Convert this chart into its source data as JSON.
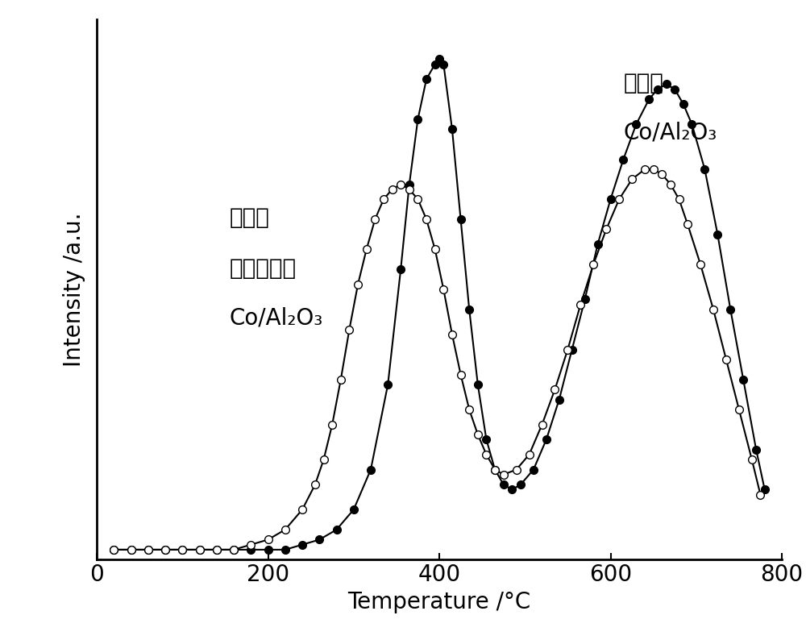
{
  "xlabel": "Temperature /°C",
  "ylabel": "Intensity /a.u.",
  "xlim": [
    0,
    800
  ],
  "ylim": [
    0,
    1.08
  ],
  "xticks": [
    0,
    200,
    400,
    600,
    800
  ],
  "filled_x": [
    20,
    40,
    60,
    80,
    100,
    120,
    140,
    160,
    180,
    200,
    220,
    240,
    260,
    280,
    300,
    320,
    340,
    355,
    365,
    375,
    385,
    395,
    400,
    405,
    415,
    425,
    435,
    445,
    455,
    465,
    475,
    485,
    495,
    510,
    525,
    540,
    555,
    570,
    585,
    600,
    615,
    630,
    645,
    655,
    665,
    675,
    685,
    695,
    710,
    725,
    740,
    755,
    770,
    780
  ],
  "filled_y": [
    0.02,
    0.02,
    0.02,
    0.02,
    0.02,
    0.02,
    0.02,
    0.02,
    0.02,
    0.02,
    0.02,
    0.03,
    0.04,
    0.06,
    0.1,
    0.18,
    0.35,
    0.58,
    0.75,
    0.88,
    0.96,
    0.99,
    1.0,
    0.99,
    0.86,
    0.68,
    0.5,
    0.35,
    0.24,
    0.18,
    0.15,
    0.14,
    0.15,
    0.18,
    0.24,
    0.32,
    0.42,
    0.52,
    0.63,
    0.72,
    0.8,
    0.87,
    0.92,
    0.94,
    0.95,
    0.94,
    0.91,
    0.87,
    0.78,
    0.65,
    0.5,
    0.36,
    0.22,
    0.14
  ],
  "open_x": [
    20,
    40,
    60,
    80,
    100,
    120,
    140,
    160,
    180,
    200,
    220,
    240,
    255,
    265,
    275,
    285,
    295,
    305,
    315,
    325,
    335,
    345,
    355,
    365,
    375,
    385,
    395,
    405,
    415,
    425,
    435,
    445,
    455,
    465,
    475,
    490,
    505,
    520,
    535,
    550,
    565,
    580,
    595,
    610,
    625,
    640,
    650,
    660,
    670,
    680,
    690,
    705,
    720,
    735,
    750,
    765,
    775
  ],
  "open_y": [
    0.02,
    0.02,
    0.02,
    0.02,
    0.02,
    0.02,
    0.02,
    0.02,
    0.03,
    0.04,
    0.06,
    0.1,
    0.15,
    0.2,
    0.27,
    0.36,
    0.46,
    0.55,
    0.62,
    0.68,
    0.72,
    0.74,
    0.75,
    0.74,
    0.72,
    0.68,
    0.62,
    0.54,
    0.45,
    0.37,
    0.3,
    0.25,
    0.21,
    0.18,
    0.17,
    0.18,
    0.21,
    0.27,
    0.34,
    0.42,
    0.51,
    0.59,
    0.66,
    0.72,
    0.76,
    0.78,
    0.78,
    0.77,
    0.75,
    0.72,
    0.67,
    0.59,
    0.5,
    0.4,
    0.3,
    0.2,
    0.13
  ],
  "background_color": "#ffffff",
  "line_color": "#000000",
  "marker_size": 7,
  "linewidth": 1.5,
  "label_fontsize": 20,
  "tick_fontsize": 20,
  "annotation_fontsize": 20,
  "label1_text_cn": "焙烧后",
  "label1_text_formula": "Co/Al₂O₃",
  "label2_text_cn1": "焙烧后",
  "label2_text_cn2": "经还原氧化",
  "label2_text_formula": "Co/Al₂O₃"
}
